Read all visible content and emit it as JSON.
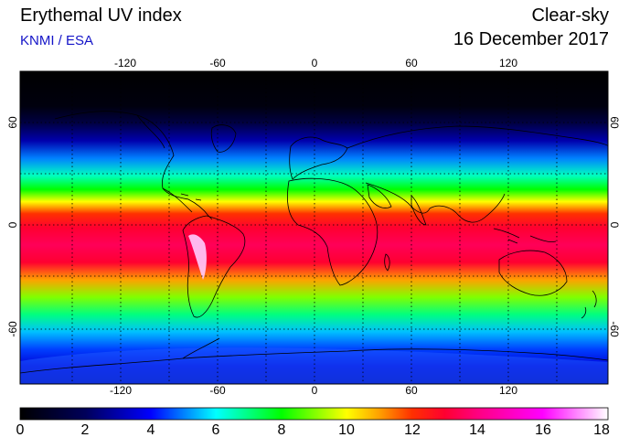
{
  "header": {
    "title": "Erythemal UV index",
    "subtitle": "KNMI / ESA",
    "condition": "Clear-sky",
    "date": "16 December 2017"
  },
  "map": {
    "lon_range": [
      -180,
      180
    ],
    "lat_range": [
      -90,
      90
    ],
    "gridlines": "dotted",
    "lon_ticks": [
      "-120",
      "-60",
      "0",
      "60",
      "120"
    ],
    "lat_ticks": [
      "60",
      "0",
      "-60"
    ],
    "lat_bands": [
      {
        "lat": 90,
        "uv": 0
      },
      {
        "lat": 70,
        "uv": 0.3
      },
      {
        "lat": 60,
        "uv": 1.5
      },
      {
        "lat": 50,
        "uv": 3
      },
      {
        "lat": 40,
        "uv": 5
      },
      {
        "lat": 30,
        "uv": 6.5
      },
      {
        "lat": 22,
        "uv": 8
      },
      {
        "lat": 15,
        "uv": 10
      },
      {
        "lat": 8,
        "uv": 12
      },
      {
        "lat": 0,
        "uv": 13
      },
      {
        "lat": -10,
        "uv": 13.5
      },
      {
        "lat": -20,
        "uv": 13
      },
      {
        "lat": -30,
        "uv": 11
      },
      {
        "lat": -40,
        "uv": 9
      },
      {
        "lat": -50,
        "uv": 7
      },
      {
        "lat": -60,
        "uv": 5.5
      },
      {
        "lat": -70,
        "uv": 4.5
      },
      {
        "lat": -80,
        "uv": 3.5
      },
      {
        "lat": -90,
        "uv": 3
      }
    ]
  },
  "colorbar": {
    "min": 0,
    "max": 18,
    "labels": [
      "0",
      "2",
      "4",
      "6",
      "8",
      "10",
      "12",
      "14",
      "16",
      "18"
    ],
    "stops": [
      {
        "v": 0,
        "color": "#000000"
      },
      {
        "v": 2,
        "color": "#00005a"
      },
      {
        "v": 4,
        "color": "#0000ff"
      },
      {
        "v": 5,
        "color": "#0080ff"
      },
      {
        "v": 6,
        "color": "#00ffff"
      },
      {
        "v": 7,
        "color": "#00ff80"
      },
      {
        "v": 8,
        "color": "#00ff00"
      },
      {
        "v": 9,
        "color": "#80ff00"
      },
      {
        "v": 10,
        "color": "#ffff00"
      },
      {
        "v": 11,
        "color": "#ffa000"
      },
      {
        "v": 12,
        "color": "#ff3000"
      },
      {
        "v": 13,
        "color": "#ff0030"
      },
      {
        "v": 14,
        "color": "#ff0080"
      },
      {
        "v": 16,
        "color": "#ff00ff"
      },
      {
        "v": 18,
        "color": "#ffffff"
      }
    ]
  }
}
